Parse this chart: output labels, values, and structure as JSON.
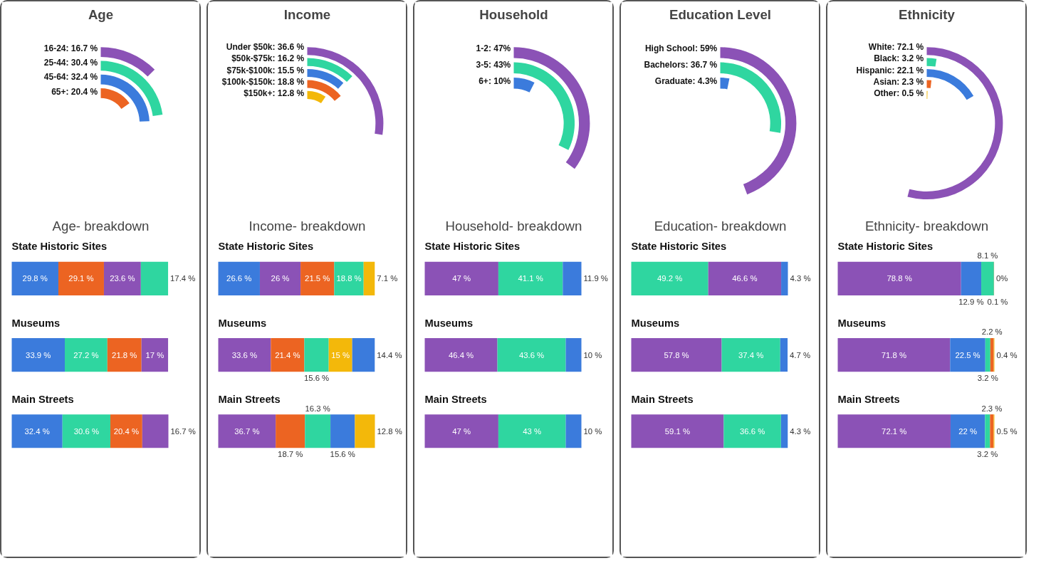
{
  "chart_data": [
    {
      "type": "other",
      "title": "Age",
      "subtitle": "Age- breakdown",
      "values": [
        16.7,
        30.4,
        32.4,
        20.4
      ],
      "value_labels": [
        "16-24: 16.7 %",
        "25-44: 30.4 %",
        "45-64: 32.4 %",
        "65+: 20.4 %"
      ],
      "colors": [
        "#8b52b6",
        "#2fd6a0",
        "#3b7bdc",
        "#ec6422"
      ]
    },
    {
      "type": "bar",
      "stacked": true,
      "orientation": "horizontal",
      "categories": [
        "State Historic Sites",
        "Museums",
        "Main Streets"
      ],
      "series": [
        {
          "colors": [
            "#3b7bdc",
            "#3b7bdc",
            "#3b7bdc"
          ],
          "values": [
            29.8,
            33.9,
            32.4
          ],
          "value_labels": [
            "29.8 %",
            "33.9 %",
            "32.4 %"
          ]
        },
        {
          "colors": [
            "#ec6422",
            "#2fd6a0",
            "#2fd6a0"
          ],
          "values": [
            29.1,
            27.2,
            30.6
          ],
          "value_labels": [
            "29.1 %",
            "27.2 %",
            "30.6 %"
          ]
        },
        {
          "colors": [
            "#8b52b6",
            "#ec6422",
            "#ec6422"
          ],
          "values": [
            23.6,
            21.8,
            20.4
          ],
          "value_labels": [
            "23.6 %",
            "21.8 %",
            "20.4 %"
          ]
        },
        {
          "colors": [
            "#2fd6a0",
            "#8b52b6",
            "#8b52b6"
          ],
          "values": [
            17.4,
            17,
            16.7
          ],
          "value_labels": [
            "17.4 %",
            "17 %",
            "16.7 %"
          ]
        }
      ]
    },
    {
      "type": "other",
      "title": "Income",
      "subtitle": "Income- breakdown",
      "values": [
        36.6,
        16.2,
        15.5,
        18.8,
        12.8
      ],
      "value_labels": [
        "Under $50k: 36.6 %",
        "$50k-$75k: 16.2 %",
        "$75k-$100k: 15.5 %",
        "$100k-$150k: 18.8 %",
        "$150k+: 12.8 %"
      ],
      "colors": [
        "#8b52b6",
        "#2fd6a0",
        "#3b7bdc",
        "#ec6422",
        "#f3b80a"
      ]
    },
    {
      "type": "bar",
      "stacked": true,
      "orientation": "horizontal",
      "categories": [
        "State Historic Sites",
        "Museums",
        "Main Streets"
      ],
      "series": [
        {
          "colors": [
            "#3b7bdc",
            "#8b52b6",
            "#8b52b6"
          ],
          "values": [
            26.6,
            33.6,
            36.7
          ],
          "value_labels": [
            "26.6 %",
            "33.6 %",
            "36.7 %"
          ]
        },
        {
          "colors": [
            "#8b52b6",
            "#ec6422",
            "#ec6422"
          ],
          "values": [
            26,
            21.4,
            18.7
          ],
          "value_labels": [
            "26 %",
            "21.4 %",
            "18.7 %"
          ]
        },
        {
          "colors": [
            "#ec6422",
            "#2fd6a0",
            "#2fd6a0"
          ],
          "values": [
            21.5,
            15.6,
            16.3
          ],
          "value_labels": [
            "21.5 %",
            "15.6 %",
            "16.3 %"
          ]
        },
        {
          "colors": [
            "#2fd6a0",
            "#f3b80a",
            "#3b7bdc"
          ],
          "values": [
            18.8,
            15,
            15.6
          ],
          "value_labels": [
            "18.8 %",
            "15 %",
            "15.6 %"
          ]
        },
        {
          "colors": [
            "#f3b80a",
            "#3b7bdc",
            "#f3b80a"
          ],
          "values": [
            7.1,
            14.4,
            12.8
          ],
          "value_labels": [
            "7.1 %",
            "14.4 %",
            "12.8 %"
          ]
        }
      ]
    },
    {
      "type": "other",
      "title": "Household",
      "subtitle": "Household- breakdown",
      "values": [
        47,
        43,
        10
      ],
      "value_labels": [
        "1-2: 47%",
        "3-5: 43%",
        "6+: 10%"
      ],
      "colors": [
        "#8b52b6",
        "#2fd6a0",
        "#3b7bdc"
      ]
    },
    {
      "type": "bar",
      "stacked": true,
      "orientation": "horizontal",
      "categories": [
        "State Historic Sites",
        "Museums",
        "Main Streets"
      ],
      "series": [
        {
          "colors": [
            "#8b52b6",
            "#8b52b6",
            "#8b52b6"
          ],
          "values": [
            47,
            46.4,
            47
          ],
          "value_labels": [
            "47 %",
            "46.4 %",
            "47 %"
          ]
        },
        {
          "colors": [
            "#2fd6a0",
            "#2fd6a0",
            "#2fd6a0"
          ],
          "values": [
            41.1,
            43.6,
            43
          ],
          "value_labels": [
            "41.1 %",
            "43.6 %",
            "43 %"
          ]
        },
        {
          "colors": [
            "#3b7bdc",
            "#3b7bdc",
            "#3b7bdc"
          ],
          "values": [
            11.9,
            10,
            10
          ],
          "value_labels": [
            "11.9 %",
            "10 %",
            "10 %"
          ]
        }
      ]
    },
    {
      "type": "other",
      "title": "Education Level",
      "subtitle": "Education- breakdown",
      "values": [
        59,
        36.7,
        4.3
      ],
      "value_labels": [
        "High School: 59%",
        "Bachelors: 36.7 %",
        "Graduate: 4.3%"
      ],
      "colors": [
        "#8b52b6",
        "#2fd6a0",
        "#3b7bdc"
      ]
    },
    {
      "type": "bar",
      "stacked": true,
      "orientation": "horizontal",
      "categories": [
        "State Historic Sites",
        "Museums",
        "Main Streets"
      ],
      "series": [
        {
          "colors": [
            "#2fd6a0",
            "#8b52b6",
            "#8b52b6"
          ],
          "values": [
            49.2,
            57.8,
            59.1
          ],
          "value_labels": [
            "49.2 %",
            "57.8 %",
            "59.1 %"
          ]
        },
        {
          "colors": [
            "#8b52b6",
            "#2fd6a0",
            "#2fd6a0"
          ],
          "values": [
            46.6,
            37.4,
            36.6
          ],
          "value_labels": [
            "46.6 %",
            "37.4 %",
            "36.6 %"
          ]
        },
        {
          "colors": [
            "#3b7bdc",
            "#3b7bdc",
            "#3b7bdc"
          ],
          "values": [
            4.3,
            4.7,
            4.3
          ],
          "value_labels": [
            "4.3 %",
            "4.7 %",
            "4.3 %"
          ]
        }
      ]
    },
    {
      "type": "other",
      "title": "Ethnicity",
      "subtitle": "Ethnicity- breakdown",
      "values": [
        72.1,
        3.2,
        22.1,
        2.3,
        0.5
      ],
      "value_labels": [
        "White: 72.1 %",
        "Black: 3.2 %",
        "Hispanic: 22.1 %",
        "Asian: 2.3 %",
        "Other: 0.5 %"
      ],
      "colors": [
        "#8b52b6",
        "#2fd6a0",
        "#3b7bdc",
        "#ec6422",
        "#f3b80a"
      ]
    },
    {
      "type": "bar",
      "stacked": true,
      "orientation": "horizontal",
      "categories": [
        "State Historic Sites",
        "Museums",
        "Main Streets"
      ],
      "series": [
        {
          "colors": [
            "#8b52b6",
            "#8b52b6",
            "#8b52b6"
          ],
          "values": [
            78.8,
            71.8,
            72.1
          ],
          "value_labels": [
            "78.8 %",
            "71.8 %",
            "72.1 %"
          ]
        },
        {
          "colors": [
            "#3b7bdc",
            "#3b7bdc",
            "#3b7bdc"
          ],
          "values": [
            12.9,
            22.5,
            22
          ],
          "value_labels": [
            "12.9 %",
            "22.5 %",
            "22 %"
          ]
        },
        {
          "colors": [
            "#2fd6a0",
            "#2fd6a0",
            "#2fd6a0"
          ],
          "values": [
            8.1,
            3.2,
            3.2
          ],
          "value_labels": [
            "8.1 %",
            "3.2 %",
            "3.2 %"
          ]
        },
        {
          "colors": [
            "#ec6422",
            "#ec6422",
            "#ec6422"
          ],
          "values": [
            0.1,
            2.2,
            2.3
          ],
          "value_labels": [
            "0.1 %",
            "2.2 %",
            "2.3 %"
          ]
        },
        {
          "colors": [
            "#f3b80a",
            "#f3b80a",
            "#f3b80a"
          ],
          "values": [
            0,
            0.4,
            0.5
          ],
          "value_labels": [
            "0%",
            "0.4 %",
            "0.5 %"
          ]
        }
      ]
    }
  ]
}
